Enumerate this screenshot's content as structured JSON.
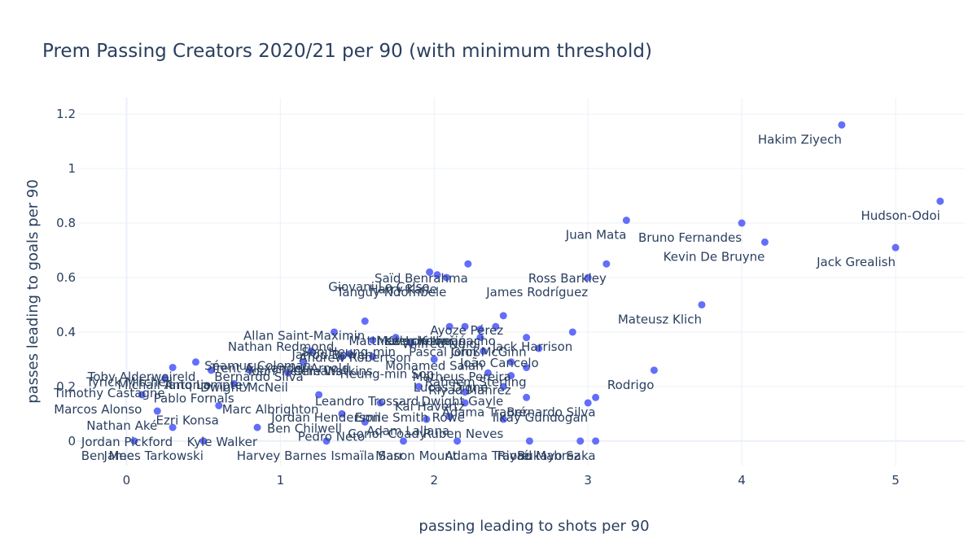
{
  "chart_data": {
    "type": "scatter",
    "title": "Prem Passing Creators 2020/21 per 90 (with minimum threshold)",
    "xlabel": "passing leading to shots per 90",
    "ylabel": "passes leading to goals per 90",
    "xlim": [
      -0.32,
      5.45
    ],
    "ylim": [
      -0.09,
      1.26
    ],
    "xticks": [
      "0",
      "1",
      "2",
      "3",
      "4",
      "5"
    ],
    "xtick_values": [
      0,
      1,
      2,
      3,
      4,
      5
    ],
    "yticks": [
      "0",
      "0.2",
      "0.4",
      "0.6",
      "0.8",
      "1",
      "1.2"
    ],
    "ytick_values": [
      0,
      0.2,
      0.4,
      0.6,
      0.8,
      1,
      1.2
    ],
    "grid": true,
    "marker_color": "#636efa",
    "text_color": "#2a3f5f",
    "grid_color": "#ebf0f8",
    "points": [
      {
        "x": 4.65,
        "y": 1.16,
        "label": "Hakim Ziyech"
      },
      {
        "x": 5.29,
        "y": 0.88,
        "label": "Hudson-Odoi"
      },
      {
        "x": 4.0,
        "y": 0.8,
        "label": "Bruno Fernandes"
      },
      {
        "x": 4.15,
        "y": 0.73,
        "label": "Kevin De Bruyne"
      },
      {
        "x": 5.0,
        "y": 0.71,
        "label": "Jack Grealish"
      },
      {
        "x": 3.25,
        "y": 0.81,
        "label": "Juan Mata"
      },
      {
        "x": 3.0,
        "y": 0.6,
        "label": "James Rodríguez"
      },
      {
        "x": 3.12,
        "y": 0.65,
        "label": "Ross Barkley"
      },
      {
        "x": 3.74,
        "y": 0.5,
        "label": "Mateusz Klich"
      },
      {
        "x": 3.43,
        "y": 0.26,
        "label": "Rodrigo"
      },
      {
        "x": 2.9,
        "y": 0.4,
        "label": "Jack Harrison"
      },
      {
        "x": 2.22,
        "y": 0.65,
        "label": "Saïd Benrahma"
      },
      {
        "x": 2.08,
        "y": 0.6,
        "label": "Tanguy Ndombele"
      },
      {
        "x": 1.97,
        "y": 0.62,
        "label": "Giovani Lo Celso"
      },
      {
        "x": 2.02,
        "y": 0.61,
        "label": "Harry Kane"
      },
      {
        "x": 2.45,
        "y": 0.46,
        "label": "Ayoze Pérez"
      },
      {
        "x": 1.55,
        "y": 0.44,
        "label": "Allan Saint-Maximin"
      },
      {
        "x": 2.2,
        "y": 0.42,
        "label": "Mateo Kovačić"
      },
      {
        "x": 2.1,
        "y": 0.42,
        "label": "Matthew Lowton"
      },
      {
        "x": 2.3,
        "y": 0.41,
        "label": "Wilfred Ndidi"
      },
      {
        "x": 2.4,
        "y": 0.42,
        "label": "Kelechi Iheanacho"
      },
      {
        "x": 1.35,
        "y": 0.4,
        "label": "Nathan Redmond"
      },
      {
        "x": 2.3,
        "y": 0.38,
        "label": "Pascal Groß"
      },
      {
        "x": 2.6,
        "y": 0.38,
        "label": "John McGinn"
      },
      {
        "x": 1.75,
        "y": 0.38,
        "label": "Son Heung-min"
      },
      {
        "x": 1.6,
        "y": 0.37,
        "label": "Jarrod Bowen"
      },
      {
        "x": 2.68,
        "y": 0.34,
        "label": "João Cancelo"
      },
      {
        "x": 2.32,
        "y": 0.33,
        "label": "Mohamed Salah"
      },
      {
        "x": 1.85,
        "y": 0.36,
        "label": "Andrew Robertson"
      },
      {
        "x": 1.2,
        "y": 0.33,
        "label": "Séamus Coleman"
      },
      {
        "x": 1.6,
        "y": 0.31,
        "label": "Ollie Watkins"
      },
      {
        "x": 1.45,
        "y": 0.32,
        "label": "Trent Alexander-Arnold"
      },
      {
        "x": 1.4,
        "y": 0.31,
        "label": "Youri Tielemans"
      },
      {
        "x": 2.5,
        "y": 0.29,
        "label": "Matheus Pereira"
      },
      {
        "x": 2.0,
        "y": 0.3,
        "label": "Heung-min Son"
      },
      {
        "x": 1.15,
        "y": 0.29,
        "label": "Bernardo Silva"
      },
      {
        "x": 2.6,
        "y": 0.27,
        "label": "Raheem Sterling"
      },
      {
        "x": 2.35,
        "y": 0.25,
        "label": "Lucas Digne"
      },
      {
        "x": 2.5,
        "y": 0.24,
        "label": "Riyad Mahrez"
      },
      {
        "x": 0.45,
        "y": 0.29,
        "label": "Toby Alderweireld"
      },
      {
        "x": 0.3,
        "y": 0.27,
        "label": "Tyrick Mitchell"
      },
      {
        "x": 0.55,
        "y": 0.26,
        "label": "Michail Antonio"
      },
      {
        "x": 0.8,
        "y": 0.26,
        "label": "Tariq Lamptey"
      },
      {
        "x": 1.05,
        "y": 0.25,
        "label": "Dwight McNeil"
      },
      {
        "x": 0.25,
        "y": 0.23,
        "label": "Timothy Castagne"
      },
      {
        "x": 0.7,
        "y": 0.21,
        "label": "Pablo Fornals"
      },
      {
        "x": 1.9,
        "y": 0.2,
        "label": "Leandro Trossard"
      },
      {
        "x": 2.2,
        "y": 0.18,
        "label": "Kai Havertz"
      },
      {
        "x": 2.45,
        "y": 0.2,
        "label": "Dwight Gayle"
      },
      {
        "x": 0.1,
        "y": 0.17,
        "label": "Marcos Alonso"
      },
      {
        "x": 1.25,
        "y": 0.17,
        "label": "Marc Albrighton"
      },
      {
        "x": 2.6,
        "y": 0.16,
        "label": "Adama Traoré"
      },
      {
        "x": 3.05,
        "y": 0.16,
        "label": "Bernardo Silva"
      },
      {
        "x": 3.0,
        "y": 0.14,
        "label": "Ilkay Gündogan"
      },
      {
        "x": 2.2,
        "y": 0.14,
        "label": "Emile Smith Rowe"
      },
      {
        "x": 1.65,
        "y": 0.14,
        "label": "Jordan Henderson"
      },
      {
        "x": 0.6,
        "y": 0.13,
        "label": "Ezri Konsa"
      },
      {
        "x": 0.2,
        "y": 0.11,
        "label": "Nathan Aké"
      },
      {
        "x": 1.4,
        "y": 0.1,
        "label": "Ben Chilwell"
      },
      {
        "x": 2.1,
        "y": 0.09,
        "label": "Adam Lallana"
      },
      {
        "x": 1.95,
        "y": 0.08,
        "label": "Conor Coady"
      },
      {
        "x": 2.45,
        "y": 0.08,
        "label": "Ruben Neves"
      },
      {
        "x": 1.55,
        "y": 0.07,
        "label": "Pedro Neto"
      },
      {
        "x": 0.3,
        "y": 0.05,
        "label": "Jordan Pickford"
      },
      {
        "x": 0.85,
        "y": 0.05,
        "label": "Kyle Walker"
      },
      {
        "x": 2.62,
        "y": 0.0,
        "label": "Adama Traoré"
      },
      {
        "x": 2.95,
        "y": 0.0,
        "label": "Riyad Mahrez"
      },
      {
        "x": 3.05,
        "y": 0.0,
        "label": "Bukayo Saka"
      },
      {
        "x": 1.8,
        "y": 0.0,
        "label": "Ismaïla Sarr"
      },
      {
        "x": 2.15,
        "y": 0.0,
        "label": "Mason Mount"
      },
      {
        "x": 1.3,
        "y": 0.0,
        "label": "Harvey Barnes"
      },
      {
        "x": 0.5,
        "y": 0.0,
        "label": "James Tarkowski"
      },
      {
        "x": 0.05,
        "y": 0.0,
        "label": "Ben Mee"
      }
    ]
  }
}
